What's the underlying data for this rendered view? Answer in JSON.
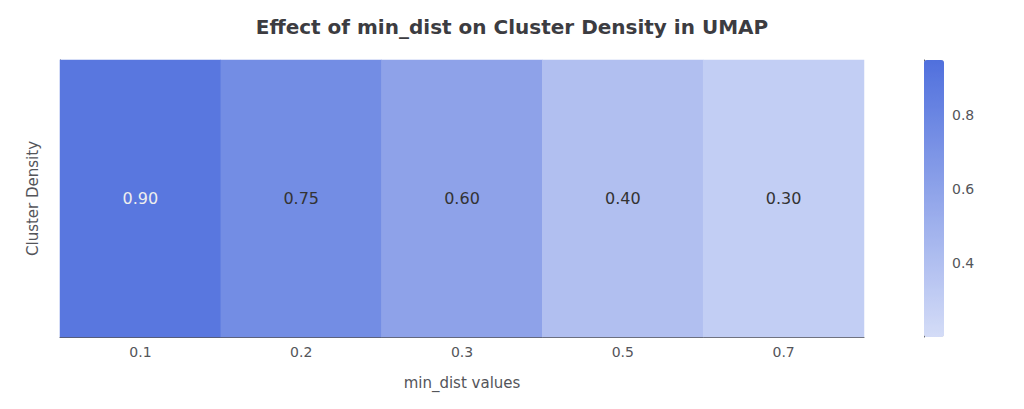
{
  "chart_data": {
    "type": "heatmap",
    "title": "Effect of min_dist on Cluster Density in UMAP",
    "xlabel": "min_dist values",
    "ylabel": "Cluster Density",
    "categories": [
      "0.1",
      "0.2",
      "0.3",
      "0.5",
      "0.7"
    ],
    "values": [
      0.9,
      0.75,
      0.6,
      0.4,
      0.3
    ],
    "value_labels": [
      "0.90",
      "0.75",
      "0.60",
      "0.40",
      "0.30"
    ],
    "data_labels": true,
    "colorbar_range": [
      0.2,
      0.95
    ],
    "colorbar_ticks": [
      0.4,
      0.6,
      0.8
    ],
    "tick_labels": "x",
    "grid": false
  }
}
